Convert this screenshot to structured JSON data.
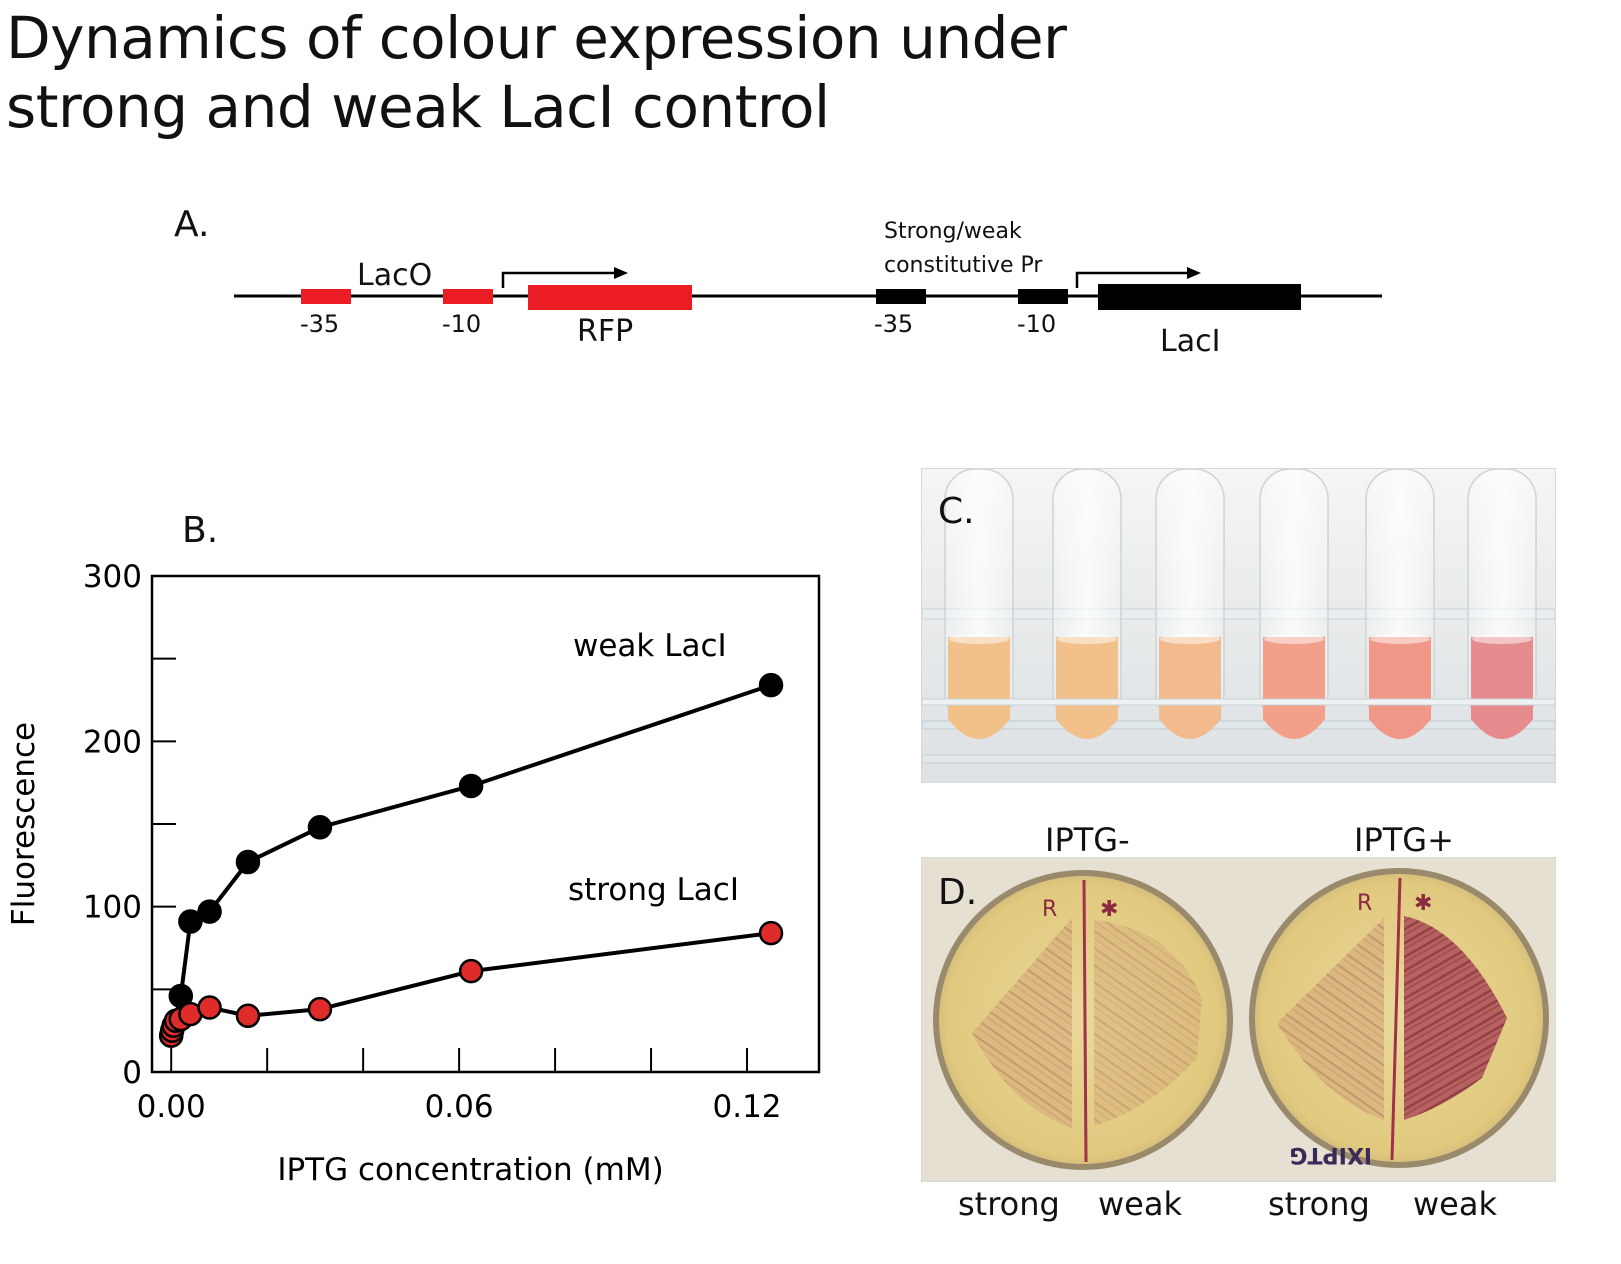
{
  "title_line1": "Dynamics of colour expression under",
  "title_line2": "strong and weak LacI control",
  "panel_a": {
    "letter": "A.",
    "laco_label": "LacO",
    "rfp_minus35": "-35",
    "rfp_minus10": "-10",
    "rfp_label": "RFP",
    "promoter_label_line1": "Strong/weak",
    "promoter_label_line2": "constitutive Pr",
    "laci_minus35": "-35",
    "laci_minus10": "-10",
    "laci_label": "LacI",
    "colors": {
      "rfp": "#ec1c24",
      "laci": "#000000"
    }
  },
  "panel_b": {
    "letter": "B.",
    "series_label_weak": "weak LacI",
    "series_label_strong": "strong LacI"
  },
  "chart_data": {
    "type": "line",
    "title": "",
    "xlabel": "IPTG concentration (mM)",
    "ylabel": "Fluorescence",
    "xlim": [
      -0.004,
      0.135
    ],
    "ylim": [
      0,
      300
    ],
    "x_ticks": [
      0.0,
      0.06,
      0.12
    ],
    "x_tick_labels": [
      "0.00",
      "0.06",
      "0.12"
    ],
    "x_minor_ticks": [
      0.02,
      0.04,
      0.08,
      0.1
    ],
    "y_ticks": [
      0,
      100,
      200,
      300
    ],
    "y_tick_labels": [
      "0",
      "100",
      "200",
      "300"
    ],
    "y_minor_ticks": [
      50,
      150,
      250
    ],
    "grid": false,
    "series": [
      {
        "name": "weak LacI",
        "color": "#000000",
        "points": [
          [
            0.0,
            22
          ],
          [
            0.002,
            46
          ],
          [
            0.004,
            91
          ],
          [
            0.008,
            97
          ],
          [
            0.016,
            127
          ],
          [
            0.031,
            148
          ],
          [
            0.0625,
            173
          ],
          [
            0.125,
            234
          ]
        ]
      },
      {
        "name": "strong LacI",
        "color": "#e02b2b",
        "points": [
          [
            0.0,
            22
          ],
          [
            0.0002,
            25
          ],
          [
            0.0005,
            28
          ],
          [
            0.001,
            31
          ],
          [
            0.002,
            32
          ],
          [
            0.004,
            35
          ],
          [
            0.008,
            39
          ],
          [
            0.016,
            34
          ],
          [
            0.031,
            38
          ],
          [
            0.0625,
            61
          ],
          [
            0.125,
            84
          ]
        ]
      }
    ]
  },
  "panel_c": {
    "letter": "C.",
    "tube_colors": [
      "#f2c189",
      "#f2c08a",
      "#f3ba8d",
      "#f3a08a",
      "#f09787",
      "#e68c8f"
    ]
  },
  "panel_d": {
    "letter": "D.",
    "plate_minus_label": "IPTG-",
    "plate_plus_label": "IPTG+",
    "plate_writing": "IXIPTG",
    "captions": [
      "strong",
      "weak",
      "strong",
      "weak"
    ],
    "colors": {
      "agar": "#e6d38c",
      "streak_light": "#c89a72",
      "streak_dark": "#8b2f3c"
    }
  }
}
